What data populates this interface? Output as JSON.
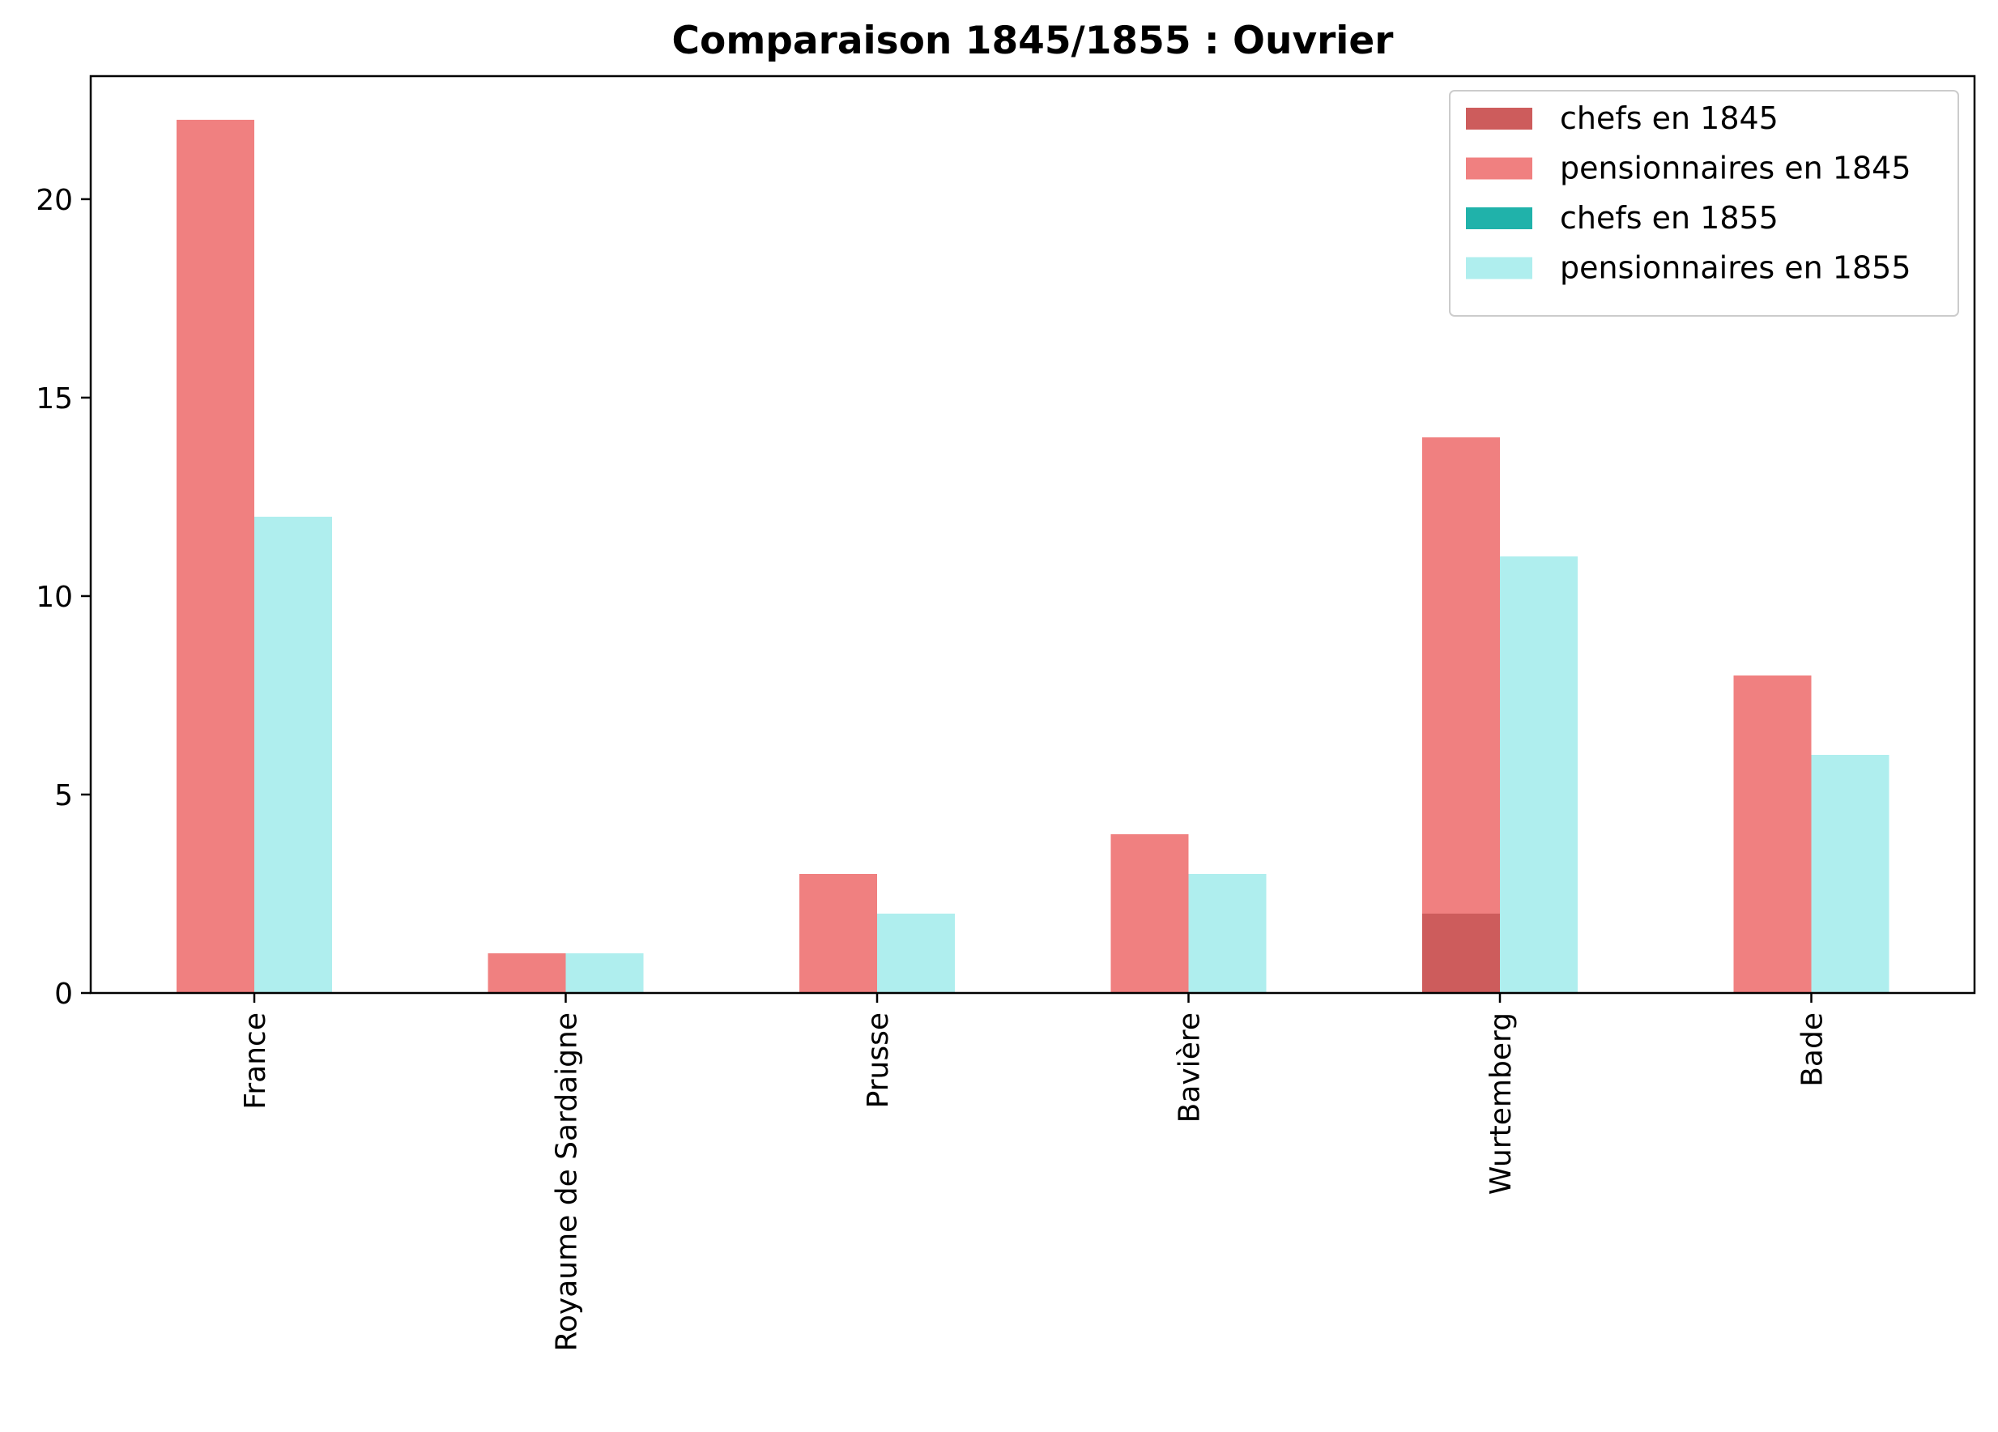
{
  "chart_data": {
    "type": "bar",
    "title": "Comparaison 1845/1855 : Ouvrier",
    "xlabel": "",
    "ylabel": "",
    "categories": [
      "France",
      "Royaume de Sardaigne",
      "Prusse",
      "Bavière",
      "Wurtemberg",
      "Bade"
    ],
    "series": [
      {
        "name": "chefs en 1845",
        "group": "1845",
        "stack_order": 0,
        "color": "#cd5c5c",
        "values": [
          0,
          0,
          0,
          0,
          2,
          0
        ]
      },
      {
        "name": "pensionnaires en 1845",
        "group": "1845",
        "stack_order": 1,
        "color": "#f08080",
        "values": [
          22,
          1,
          3,
          4,
          12,
          8
        ]
      },
      {
        "name": "chefs en 1855",
        "group": "1855",
        "stack_order": 0,
        "color": "#20b2aa",
        "values": [
          0,
          0,
          0,
          0,
          0,
          0
        ]
      },
      {
        "name": "pensionnaires en 1855",
        "group": "1855",
        "stack_order": 1,
        "color": "#afeeee",
        "values": [
          12,
          1,
          2,
          3,
          11,
          6
        ]
      }
    ],
    "ylim": [
      0,
      23.1
    ],
    "yticks": [
      0,
      5,
      10,
      15,
      20
    ],
    "grid": false,
    "legend_position": "top-right",
    "stacked": true
  }
}
